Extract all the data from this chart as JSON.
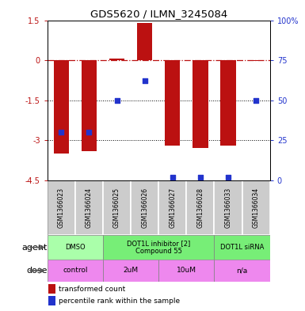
{
  "title": "GDS5620 / ILMN_3245084",
  "samples": [
    "GSM1366023",
    "GSM1366024",
    "GSM1366025",
    "GSM1366026",
    "GSM1366027",
    "GSM1366028",
    "GSM1366033",
    "GSM1366034"
  ],
  "bar_values": [
    -3.5,
    -3.4,
    0.05,
    1.4,
    -3.2,
    -3.3,
    -3.2,
    -0.02
  ],
  "percentile_values": [
    30,
    30,
    50,
    62,
    2,
    2,
    2,
    50
  ],
  "ylim_left": [
    -4.5,
    1.5
  ],
  "ylim_right": [
    0,
    100
  ],
  "yticks_left": [
    -4.5,
    -3.0,
    -1.5,
    0.0,
    1.5
  ],
  "ytick_labels_left": [
    "-4.5",
    "-3",
    "-1.5",
    "0",
    "1.5"
  ],
  "yticks_right": [
    0,
    25,
    50,
    75,
    100
  ],
  "ytick_labels_right": [
    "0",
    "25",
    "50",
    "75",
    "100%"
  ],
  "bar_color": "#bb1111",
  "dot_color": "#2233cc",
  "dotted_lines": [
    -1.5,
    -3.0
  ],
  "agent_groups": [
    {
      "label": "DMSO",
      "color": "#aaffaa",
      "start": 0,
      "end": 2
    },
    {
      "label": "DOT1L inhibitor [2]\nCompound 55",
      "color": "#77ee77",
      "start": 2,
      "end": 6
    },
    {
      "label": "DOT1L siRNA",
      "color": "#77ee77",
      "start": 6,
      "end": 8
    }
  ],
  "dose_groups": [
    {
      "label": "control",
      "color": "#ee88ee",
      "start": 0,
      "end": 2
    },
    {
      "label": "2uM",
      "color": "#ee88ee",
      "start": 2,
      "end": 4
    },
    {
      "label": "10uM",
      "color": "#ee88ee",
      "start": 4,
      "end": 6
    },
    {
      "label": "n/a",
      "color": "#ee88ee",
      "start": 6,
      "end": 8
    }
  ],
  "sample_box_color": "#cccccc",
  "legend_bar_label": "transformed count",
  "legend_dot_label": "percentile rank within the sample",
  "agent_label": "agent",
  "dose_label": "dose"
}
